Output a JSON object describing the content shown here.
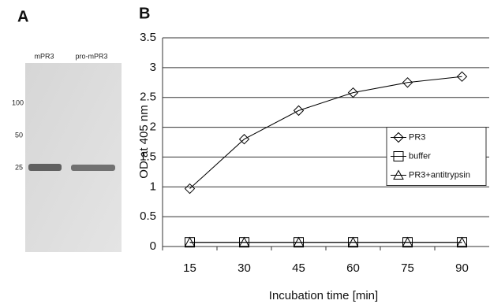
{
  "panel_a": {
    "label": "A",
    "lanes": [
      "mPR3",
      "pro-mPR3"
    ],
    "markers": [
      100,
      50,
      25
    ]
  },
  "chart_data": {
    "type": "line",
    "panel_label": "B",
    "categories": [
      15,
      30,
      45,
      60,
      75,
      90
    ],
    "x_label": "Incubation time [min]",
    "y_label": "OD at 405 nm",
    "series": [
      {
        "name": "PR3",
        "color": "#000000",
        "marker": "diamond",
        "values": [
          0.97,
          1.8,
          2.28,
          2.58,
          2.75,
          2.85
        ]
      },
      {
        "name": "buffer",
        "color": "#000000",
        "marker": "square",
        "values": [
          0.07,
          0.07,
          0.07,
          0.07,
          0.07,
          0.07
        ]
      },
      {
        "name": "PR3+antitrypsin",
        "color": "#000000",
        "marker": "triangle",
        "values": [
          0.07,
          0.07,
          0.07,
          0.07,
          0.07,
          0.07
        ]
      }
    ],
    "ylim": [
      0,
      3.5
    ],
    "yticks": [
      0,
      0.5,
      1,
      1.5,
      2,
      2.5,
      3,
      3.5
    ],
    "grid": true,
    "legend": "right"
  }
}
